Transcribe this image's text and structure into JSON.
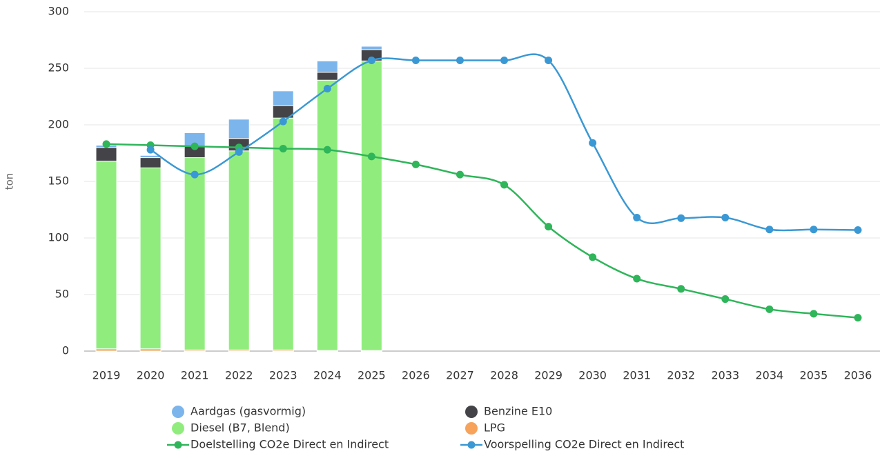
{
  "chart_data": {
    "type": "bar",
    "stacked": true,
    "y_label": "ton",
    "categories": [
      "2019",
      "2020",
      "2021",
      "2022",
      "2023",
      "2024",
      "2025",
      "2026",
      "2027",
      "2028",
      "2029",
      "2030",
      "2031",
      "2032",
      "2033",
      "2034",
      "2035",
      "2036"
    ],
    "ylim": [
      0,
      300
    ],
    "yticks": [
      0,
      50,
      100,
      150,
      200,
      250,
      300
    ],
    "grid": true,
    "series": [
      {
        "name": "Aardgas (gasvormig)",
        "type": "bar",
        "color": "#7cb5ec",
        "values": [
          2,
          2,
          12,
          17,
          13,
          10,
          3,
          null,
          null,
          null,
          null,
          null,
          null,
          null,
          null,
          null,
          null,
          null
        ]
      },
      {
        "name": "Benzine E10",
        "type": "bar",
        "color": "#434348",
        "values": [
          12,
          9,
          10,
          11,
          11,
          7,
          10,
          null,
          null,
          null,
          null,
          null,
          null,
          null,
          null,
          null,
          null,
          null
        ]
      },
      {
        "name": "Diesel (B7, Blend)",
        "type": "bar",
        "color": "#90ed7d",
        "values": [
          166,
          160,
          170,
          176,
          205,
          239,
          256,
          null,
          null,
          null,
          null,
          null,
          null,
          null,
          null,
          null,
          null,
          null
        ]
      },
      {
        "name": "LPG",
        "type": "bar",
        "color": "#f7a35c",
        "values": [
          2,
          2,
          1,
          1,
          1,
          0.5,
          0.5,
          null,
          null,
          null,
          null,
          null,
          null,
          null,
          null,
          null,
          null,
          null
        ]
      },
      {
        "name": "Doelstelling CO2e Direct en Indirect",
        "type": "line",
        "color": "#2fb55a",
        "values": [
          183,
          182,
          181,
          180,
          179,
          178,
          172,
          165,
          156,
          147,
          110,
          83,
          64,
          55,
          46,
          37,
          33,
          29.5
        ]
      },
      {
        "name": "Voorspelling CO2e Direct en Indirect",
        "type": "line",
        "color": "#3a98d4",
        "values": [
          null,
          178,
          156,
          176,
          203,
          232,
          257,
          257,
          257,
          257,
          257,
          184,
          118,
          117.5,
          118,
          107.5,
          107.5,
          107
        ]
      }
    ]
  }
}
